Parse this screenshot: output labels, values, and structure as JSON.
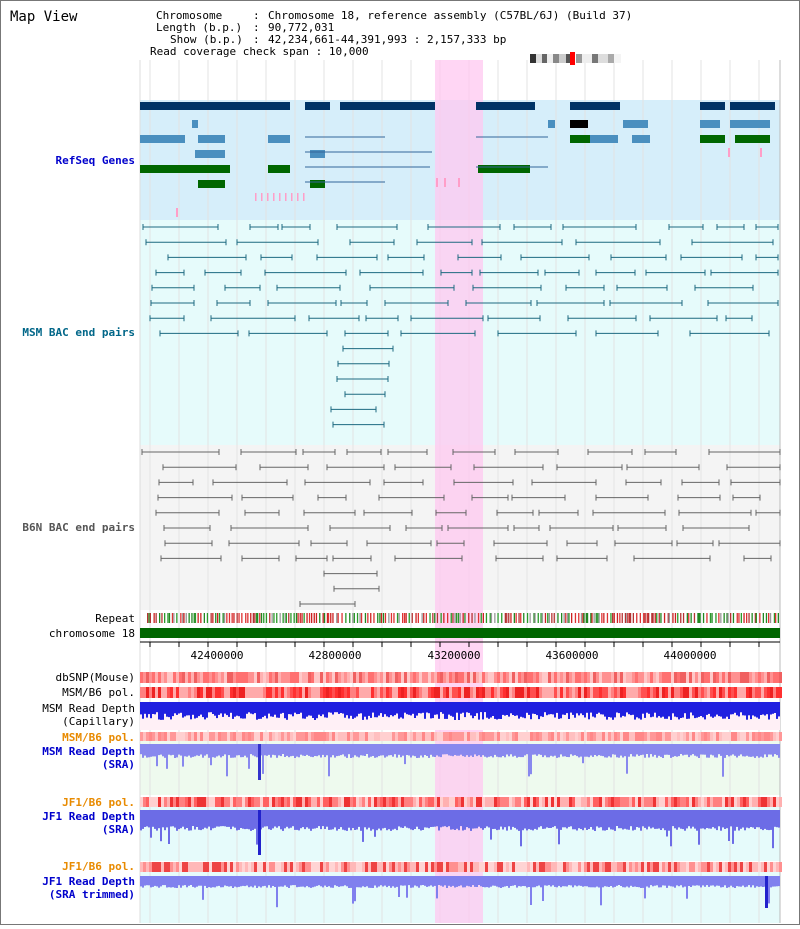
{
  "header": {
    "title": "Map View",
    "chromosome_key": "Chromosome",
    "chromosome_value": "Chromosome 18, reference assembly (C57BL/6J) (Build 37)",
    "length_key": "Length (b.p.)",
    "length_value": "90,772,031",
    "show_key": "Show (b.p.)",
    "show_value": "42,234,661-44,391,993 : 2,157,333 bp",
    "span_key": "Read coverage check span",
    "span_value": "10,000"
  },
  "tracks": {
    "refseq": "RefSeq Genes",
    "msm_bac": "MSM BAC end pairs",
    "b6n_bac": "B6N BAC end pairs",
    "repeat": "Repeat",
    "chromosome": "chromosome 18",
    "dbsnp": "dbSNP(Mouse)",
    "msm_b6_pol": "MSM/B6 pol.",
    "msm_depth_cap_1": "MSM Read Depth",
    "msm_depth_cap_2": "(Capillary)",
    "msm_b6_pol_sra": "MSM/B6 pol.",
    "msm_depth_sra_1": "MSM Read Depth",
    "msm_depth_sra_2": "(SRA)",
    "jf1_b6_pol": "JF1/B6 pol.",
    "jf1_depth_sra_1": "JF1 Read Depth",
    "jf1_depth_sra_2": "(SRA)",
    "jf1_b6_pol_trim": "JF1/B6 pol.",
    "jf1_depth_trim_1": "JF1 Read Depth",
    "jf1_depth_trim_2": "(SRA trimmed)"
  },
  "axis": {
    "ticks": [
      "42400000",
      "42800000",
      "43200000",
      "43600000",
      "44000000"
    ]
  },
  "colors": {
    "refseq_label": "#0000cc",
    "msm_label": "#006688",
    "b6n_label": "#555555",
    "pol_label": "#e88a00",
    "depth_label": "#0000cc",
    "highlight": "#ffcdf0",
    "chromosome_bar": "#006600"
  }
}
